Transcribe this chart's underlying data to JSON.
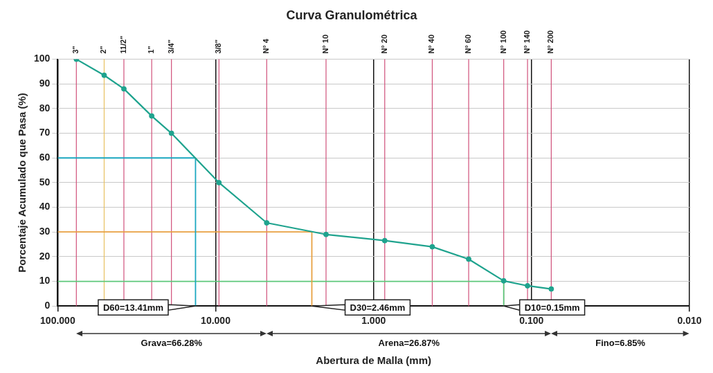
{
  "chart_data": {
    "type": "line",
    "title": "Curva Granulométrica",
    "xlabel": "Abertura de Malla (mm)",
    "ylabel": "Porcentaje Acumulado que Pasa (%)",
    "log": "x",
    "grid": true,
    "legend": false,
    "marker": "circle",
    "xlim": [
      100,
      0.01
    ],
    "xticks": [
      {
        "value": 100,
        "label": "100.000"
      },
      {
        "value": 10,
        "label": "10.000"
      },
      {
        "value": 1,
        "label": "1.000"
      },
      {
        "value": 0.1,
        "label": "0.100"
      },
      {
        "value": 0.01,
        "label": "0.010"
      }
    ],
    "ylim": [
      0,
      100
    ],
    "yticks": [
      0,
      10,
      20,
      30,
      40,
      50,
      60,
      70,
      80,
      90,
      100
    ],
    "ref_lines": [
      {
        "axis": "x",
        "value": 76.2,
        "color": "#d0507a"
      },
      {
        "axis": "x",
        "value": 50.8,
        "color": "#e8c060"
      },
      {
        "axis": "x",
        "value": 38.1,
        "color": "#d0507a"
      },
      {
        "axis": "x",
        "value": 25.4,
        "color": "#d0507a"
      },
      {
        "axis": "x",
        "value": 19.05,
        "color": "#d0507a"
      },
      {
        "axis": "x",
        "value": 9.525,
        "color": "#d0507a"
      },
      {
        "axis": "x",
        "value": 4.75,
        "color": "#d0507a"
      },
      {
        "axis": "x",
        "value": 2,
        "color": "#d0507a"
      },
      {
        "axis": "x",
        "value": 0.85,
        "color": "#d0507a"
      },
      {
        "axis": "x",
        "value": 0.425,
        "color": "#d0507a"
      },
      {
        "axis": "x",
        "value": 0.25,
        "color": "#d0507a"
      },
      {
        "axis": "x",
        "value": 0.15,
        "color": "#d0507a"
      },
      {
        "axis": "x",
        "value": 0.106,
        "color": "#d0507a"
      },
      {
        "axis": "x",
        "value": 0.075,
        "color": "#d0507a"
      }
    ],
    "series": [
      {
        "color": "#1fa38e",
        "x": [
          76.2,
          50.8,
          38.1,
          25.4,
          19.05,
          9.525,
          4.75,
          2,
          0.85,
          0.425,
          0.25,
          0.15,
          0.106,
          0.075
        ],
        "values": [
          100,
          93.5,
          88,
          77,
          70,
          50,
          33.7,
          29,
          26.5,
          24,
          19,
          10.2,
          8.2,
          6.9
        ]
      },
      {
        "color": "#1aa7c0",
        "marker": "none",
        "x": [
          100,
          13.41,
          13.41
        ],
        "values": [
          60,
          60,
          0
        ]
      },
      {
        "color": "#e8a040",
        "marker": "none",
        "x": [
          100,
          2.46,
          2.46
        ],
        "values": [
          30,
          30,
          0
        ]
      },
      {
        "color": "#5cc87a",
        "marker": "none",
        "x": [
          100,
          0.15,
          0.15
        ],
        "values": [
          10,
          10,
          0
        ]
      }
    ],
    "annotations": [
      {
        "text": "D60=13.41mm",
        "x": 13.41,
        "y": 0
      },
      {
        "text": "D30=2.46mm",
        "x": 2.46,
        "y": 0
      },
      {
        "text": "D10=0.15mm",
        "x": 0.15,
        "y": 0
      },
      {
        "text": "3\"",
        "x": 76.2,
        "y": 100
      },
      {
        "text": "2\"",
        "x": 50.8,
        "y": 100
      },
      {
        "text": "11/2\"",
        "x": 38.1,
        "y": 100
      },
      {
        "text": "1\"",
        "x": 25.4,
        "y": 100
      },
      {
        "text": "3/4\"",
        "x": 19.05,
        "y": 100
      },
      {
        "text": "3/8\"",
        "x": 9.525,
        "y": 100
      },
      {
        "text": "N° 4",
        "x": 4.75,
        "y": 100
      },
      {
        "text": "N° 10",
        "x": 2,
        "y": 100
      },
      {
        "text": "N° 20",
        "x": 0.85,
        "y": 100
      },
      {
        "text": "N° 40",
        "x": 0.425,
        "y": 100
      },
      {
        "text": "N° 60",
        "x": 0.25,
        "y": 100
      },
      {
        "text": "N° 100",
        "x": 0.15,
        "y": 100
      },
      {
        "text": "N° 140",
        "x": 0.106,
        "y": 100
      },
      {
        "text": "N° 200",
        "x": 0.075,
        "y": 100
      },
      "Grava=66.28%",
      "Arena=26.87%",
      "Fino=6.85%"
    ]
  }
}
